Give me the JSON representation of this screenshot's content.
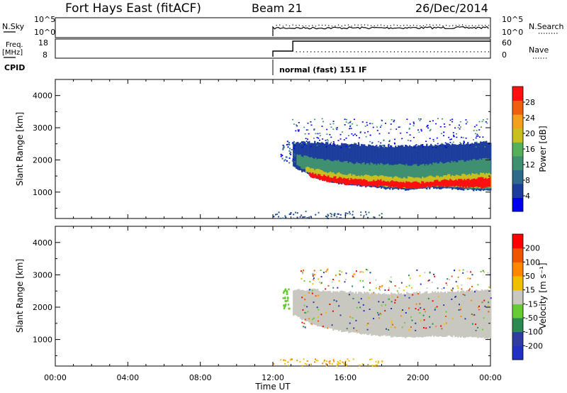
{
  "header": {
    "station": "Fort Hays East (fitACF)",
    "beam": "Beam 21",
    "date": "26/Dec/2014"
  },
  "noise_panel": {
    "left_label": "N.Sky",
    "right_label": "N.Search",
    "left_ticks": [
      "10^5",
      "10^0"
    ],
    "right_ticks": [
      "10^5",
      "10^0"
    ]
  },
  "freq_panel": {
    "left_label_line1": "Freq.",
    "left_label_line2": "[MHz]",
    "right_label": "Nave",
    "left_ticks": [
      "18",
      "8"
    ],
    "right_ticks": [
      "60",
      "0"
    ]
  },
  "cpid": {
    "label": "CPID",
    "program": "normal (fast) 151 IF"
  },
  "colors": {
    "power_scale": [
      "#0000ee",
      "#1c3c9c",
      "#2f6a8a",
      "#3f9070",
      "#55b05a",
      "#c8c020",
      "#f3a020",
      "#ee6010",
      "#ff1010"
    ],
    "velocity_scale": [
      "#ff0000",
      "#ee5500",
      "#ff8800",
      "#f0c000",
      "#c8c8c0",
      "#66cc33",
      "#2a8a50",
      "#303ca0",
      "#2030c0"
    ]
  },
  "chart_data": [
    {
      "type": "heatmap",
      "quantity": "Power",
      "ylabel": "Slant Range [km]",
      "yticks": [
        1000,
        2000,
        3000,
        4000
      ],
      "ylim": [
        180,
        4500
      ],
      "xlim": [
        0,
        24
      ],
      "colorbar_label": "Power [dB]",
      "colorbar_ticks": [
        4,
        8,
        12,
        16,
        20,
        24,
        28
      ],
      "colorbar_range": [
        0,
        32
      ],
      "scatter_onset_hour": 12.0,
      "layers": [
        {
          "name": "outer",
          "value_band": "4-8 dB",
          "color": "#1c3c9c",
          "start": 13.1,
          "lower": [
            1780,
            1460,
            1300,
            1200,
            1140,
            1090,
            1060,
            1120,
            1100,
            1060,
            1030
          ],
          "upper": [
            2540,
            2560,
            2500,
            2480,
            2450,
            2430,
            2450,
            2470,
            2490,
            2530,
            2560
          ]
        },
        {
          "name": "mid",
          "value_band": "8-12 dB",
          "color": "#3f9070",
          "start": 13.3,
          "lower": [
            1820,
            1520,
            1360,
            1260,
            1200,
            1150,
            1120,
            1180,
            1150,
            1110,
            1080
          ],
          "upper": [
            2160,
            2040,
            1980,
            1900,
            1880,
            1850,
            1840,
            1880,
            1950,
            2000,
            2030
          ]
        },
        {
          "name": "inner",
          "value_band": "12-20 dB",
          "color": "#c8c020",
          "start": 13.8,
          "lower": [
            1620,
            1420,
            1300,
            1240,
            1200,
            1160,
            1150,
            1200,
            1180,
            1150,
            1130
          ],
          "upper": [
            1780,
            1640,
            1560,
            1520,
            1500,
            1460,
            1450,
            1500,
            1530,
            1560,
            1580
          ]
        },
        {
          "name": "core",
          "value_band": "20-32 dB",
          "color": "#ff1010",
          "start": 14.0,
          "lower": [
            1480,
            1330,
            1240,
            1200,
            1180,
            1130,
            1130,
            1180,
            1170,
            1150,
            1140
          ],
          "upper": [
            1600,
            1480,
            1420,
            1370,
            1360,
            1320,
            1300,
            1350,
            1380,
            1420,
            1450
          ]
        }
      ]
    },
    {
      "type": "heatmap",
      "quantity": "Velocity",
      "ylabel": "Slant Range [km]",
      "yticks": [
        1000,
        2000,
        3000,
        4000
      ],
      "ylim": [
        180,
        4500
      ],
      "xlim": [
        0,
        24
      ],
      "xticks": [
        "00:00",
        "04:00",
        "08:00",
        "12:00",
        "16:00",
        "20:00",
        "00:00"
      ],
      "xlabel": "Time UT",
      "colorbar_label": "Velocity [m s⁻¹]",
      "colorbar_ticks": [
        200,
        100,
        50,
        15,
        -15,
        -50,
        -100,
        -200
      ],
      "bulk_color": "#c8c8c0",
      "bulk_lower": [
        1760,
        1450,
        1300,
        1200,
        1140,
        1090,
        1060,
        1110,
        1100,
        1060,
        1030
      ],
      "bulk_upper": [
        2520,
        2540,
        2480,
        2460,
        2440,
        2420,
        2440,
        2460,
        2480,
        2520,
        2550
      ]
    }
  ]
}
